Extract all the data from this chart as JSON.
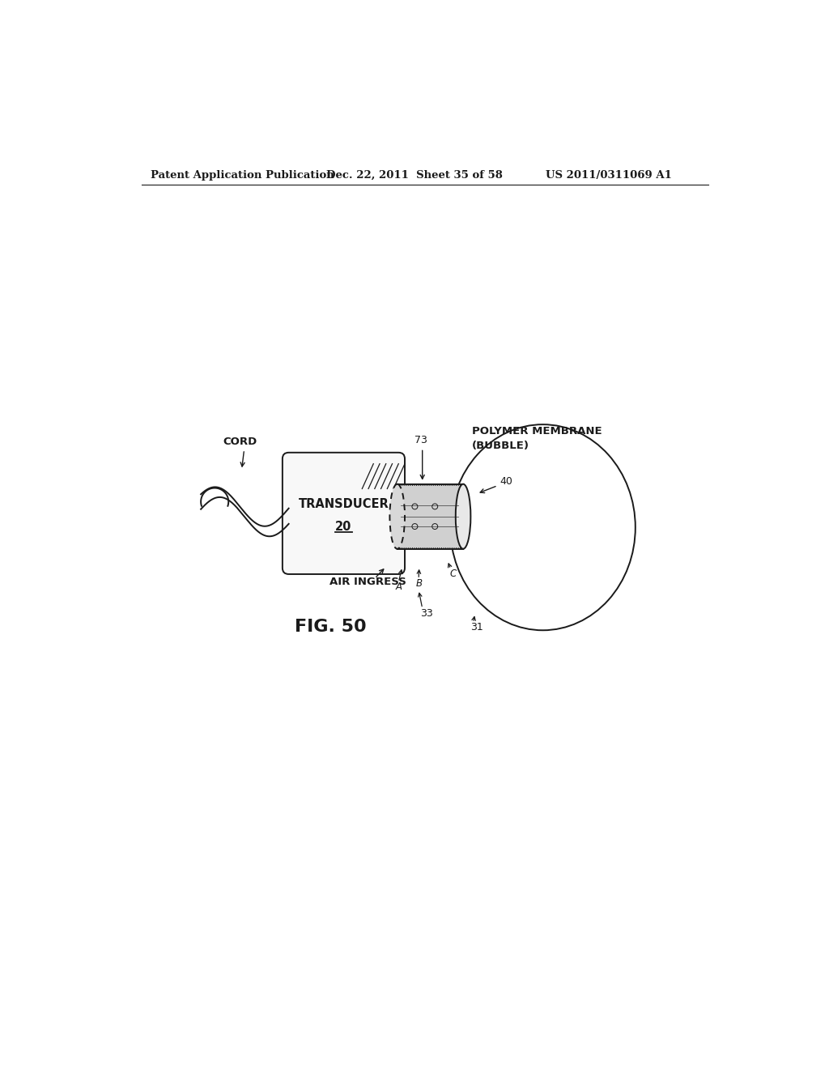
{
  "bg_color": "#ffffff",
  "line_color": "#1a1a1a",
  "header_text": "Patent Application Publication",
  "header_date": "Dec. 22, 2011  Sheet 35 of 58",
  "header_patent": "US 2011/0311069 A1",
  "fig_label": "FIG. 50",
  "transducer_label": "TRANSDUCER",
  "transducer_num": "20",
  "air_ingress_label": "AIR INGRESS",
  "cord_label": "CORD",
  "polymer_label": "POLYMER MEMBRANE\n(BUBBLE)"
}
